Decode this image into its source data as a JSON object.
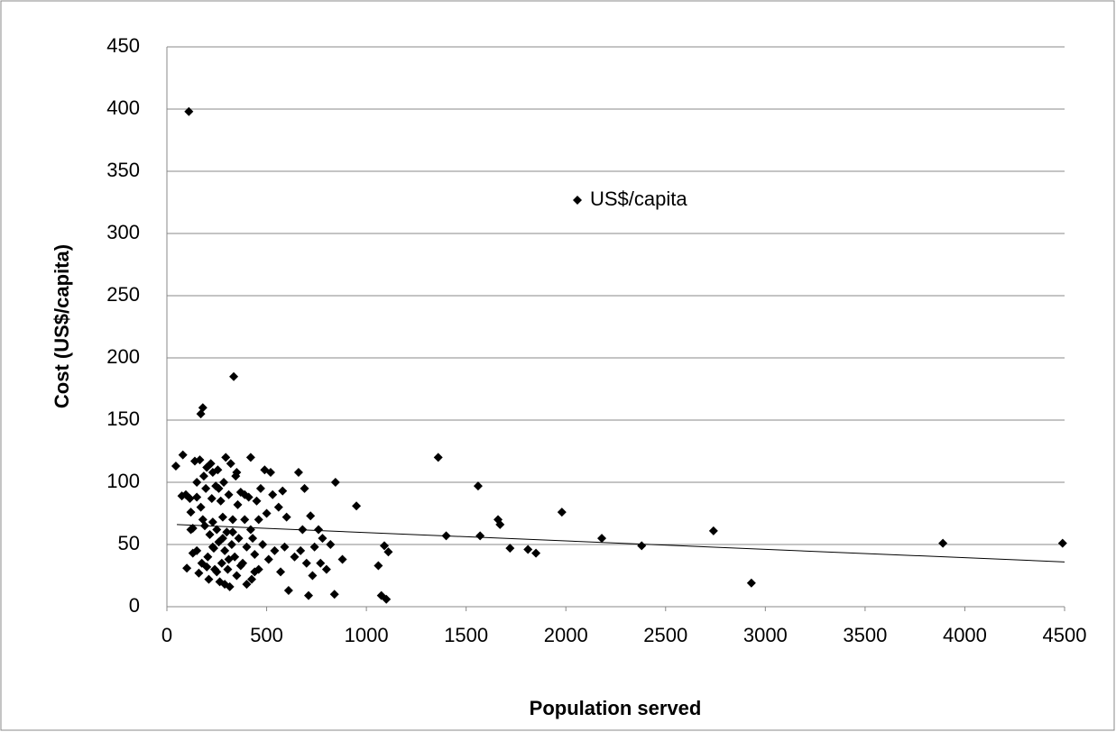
{
  "chart_data": {
    "type": "scatter",
    "x_label": "Population served",
    "y_label": "Cost  (US$/capita)",
    "xlim": [
      0,
      4500
    ],
    "xticks": [
      0,
      500,
      1000,
      1500,
      2000,
      2500,
      3000,
      3500,
      4000,
      4500
    ],
    "ylim": [
      0,
      450
    ],
    "yticks": [
      0,
      50,
      100,
      150,
      200,
      250,
      300,
      350,
      400,
      450
    ],
    "grid": true,
    "legend": "upper center",
    "series": [
      {
        "name": "US$/capita",
        "color": "#000000",
        "x": [
          45,
          80,
          75,
          95,
          100,
          110,
          115,
          120,
          130,
          140,
          150,
          150,
          160,
          165,
          170,
          170,
          180,
          175,
          185,
          190,
          195,
          200,
          205,
          210,
          215,
          220,
          225,
          230,
          235,
          240,
          245,
          250,
          255,
          260,
          265,
          270,
          275,
          280,
          285,
          290,
          295,
          300,
          305,
          310,
          315,
          320,
          325,
          330,
          335,
          340,
          345,
          350,
          355,
          360,
          370,
          380,
          390,
          400,
          410,
          420,
          425,
          430,
          440,
          450,
          460,
          470,
          480,
          490,
          500,
          510,
          520,
          530,
          540,
          560,
          570,
          580,
          590,
          600,
          610,
          640,
          660,
          670,
          680,
          690,
          700,
          710,
          720,
          730,
          740,
          760,
          770,
          780,
          800,
          820,
          840,
          845,
          880,
          950,
          1060,
          1075,
          1090,
          1100,
          1110,
          1360,
          1400,
          1560,
          1570,
          1660,
          1670,
          1720,
          1810,
          1850,
          1980,
          2180,
          2380,
          2740,
          2930,
          3890,
          4490,
          130,
          200,
          260,
          290,
          330,
          370,
          420,
          460,
          150,
          230,
          310,
          390,
          230,
          280,
          180,
          350,
          120,
          250,
          400,
          440
        ],
        "y": [
          113,
          122,
          89,
          90,
          31,
          398,
          87,
          76,
          63,
          117,
          88,
          45,
          27,
          118,
          80,
          155,
          160,
          35,
          105,
          65,
          95,
          112,
          40,
          22,
          58,
          115,
          87,
          68,
          47,
          30,
          97,
          62,
          110,
          52,
          20,
          85,
          35,
          72,
          100,
          45,
          120,
          60,
          30,
          90,
          16,
          115,
          50,
          70,
          185,
          40,
          105,
          25,
          82,
          55,
          92,
          35,
          70,
          48,
          88,
          120,
          22,
          55,
          42,
          85,
          30,
          95,
          50,
          110,
          75,
          38,
          108,
          90,
          45,
          80,
          28,
          93,
          48,
          72,
          13,
          40,
          108,
          45,
          62,
          95,
          35,
          9,
          73,
          25,
          48,
          62,
          35,
          55,
          30,
          50,
          10,
          100,
          38,
          81,
          33,
          9,
          49,
          6,
          44,
          120,
          57,
          97,
          57,
          70,
          66,
          47,
          46,
          43,
          76,
          55,
          49,
          61,
          19,
          51,
          51,
          43,
          32,
          95,
          18,
          60,
          33,
          62,
          70,
          100,
          108,
          38,
          90,
          48,
          55,
          70,
          108,
          62,
          28,
          18,
          28
        ]
      }
    ],
    "trendline": {
      "x": [
        50,
        4500
      ],
      "y": [
        66,
        36
      ]
    }
  }
}
